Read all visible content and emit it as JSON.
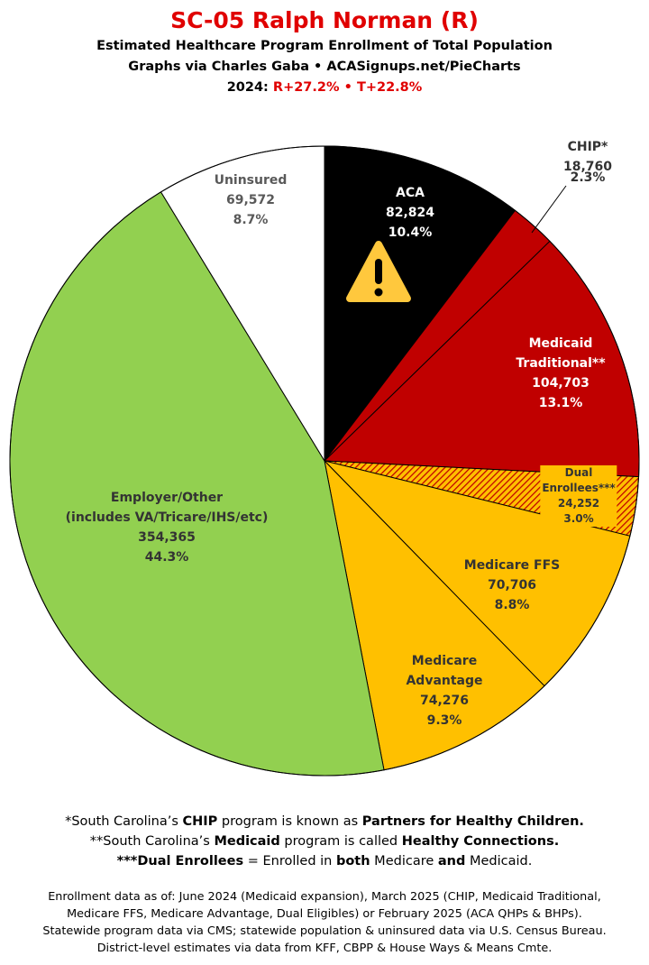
{
  "header": {
    "title": "SC-05 Ralph Norman (R)",
    "subtitle_lines": [
      "Estimated Healthcare Program Enrollment of Total Population",
      "Graphs via Charles Gaba  •  ACASignups.net/PieCharts"
    ],
    "margin_prefix": "2024:",
    "margin_r": "R+27.2%",
    "margin_sep": "•",
    "margin_t": "T+22.8%"
  },
  "chart_data": {
    "type": "pie",
    "categories": [
      "ACA",
      "CHIP*",
      "Medicaid\nTraditional**",
      "Dual Enrollees***",
      "Medicare FFS",
      "Medicare\nAdvantage",
      "Employer/Other\n(includes VA/Tricare/IHS/etc)",
      "Uninsured"
    ],
    "values": [
      82824,
      18760,
      104703,
      24252,
      70706,
      74276,
      354365,
      69572
    ],
    "value_labels": [
      "82,824",
      "18,760",
      "104,703",
      "24,252",
      "70,706",
      "74,276",
      "354,365",
      "69,572"
    ],
    "percents": [
      10.4,
      2.3,
      13.1,
      3.0,
      8.8,
      9.3,
      44.3,
      8.7
    ],
    "percent_labels": [
      "10.4%",
      "2.3%",
      "13.1%",
      "3.0%",
      "8.8%",
      "9.3%",
      "44.3%",
      "8.7%"
    ],
    "colors": [
      "#000000",
      "#c00000",
      "#c00000",
      "#ffc000",
      "#ffc000",
      "#ffc000",
      "#92d050",
      "#ffffff"
    ],
    "hatched": [
      false,
      false,
      false,
      true,
      false,
      false,
      false,
      false
    ],
    "hatch_color": "#c00000"
  },
  "footnotes": [
    [
      "*South Carolina’s ",
      "CHIP",
      " program is known as ",
      "Partners for Healthy Children."
    ],
    [
      "**South Carolina’s ",
      "Medicaid",
      " program is called ",
      "Healthy Connections."
    ],
    [
      "",
      "***Dual Enrollees",
      " = Enrolled in ",
      "both",
      " Medicare ",
      "and",
      " Medicaid."
    ]
  ],
  "sources": [
    "Enrollment data as of: June 2024 (Medicaid expansion), March 2025 (CHIP, Medicaid Traditional,",
    "Medicare FFS, Medicare Advantage, Dual Eligibles) or February 2025 (ACA QHPs & BHPs).",
    "Statewide program data via CMS; statewide population & uninsured data via U.S. Census Bureau.",
    "District-level estimates via data from KFF, CBPP & House Ways & Means Cmte."
  ]
}
